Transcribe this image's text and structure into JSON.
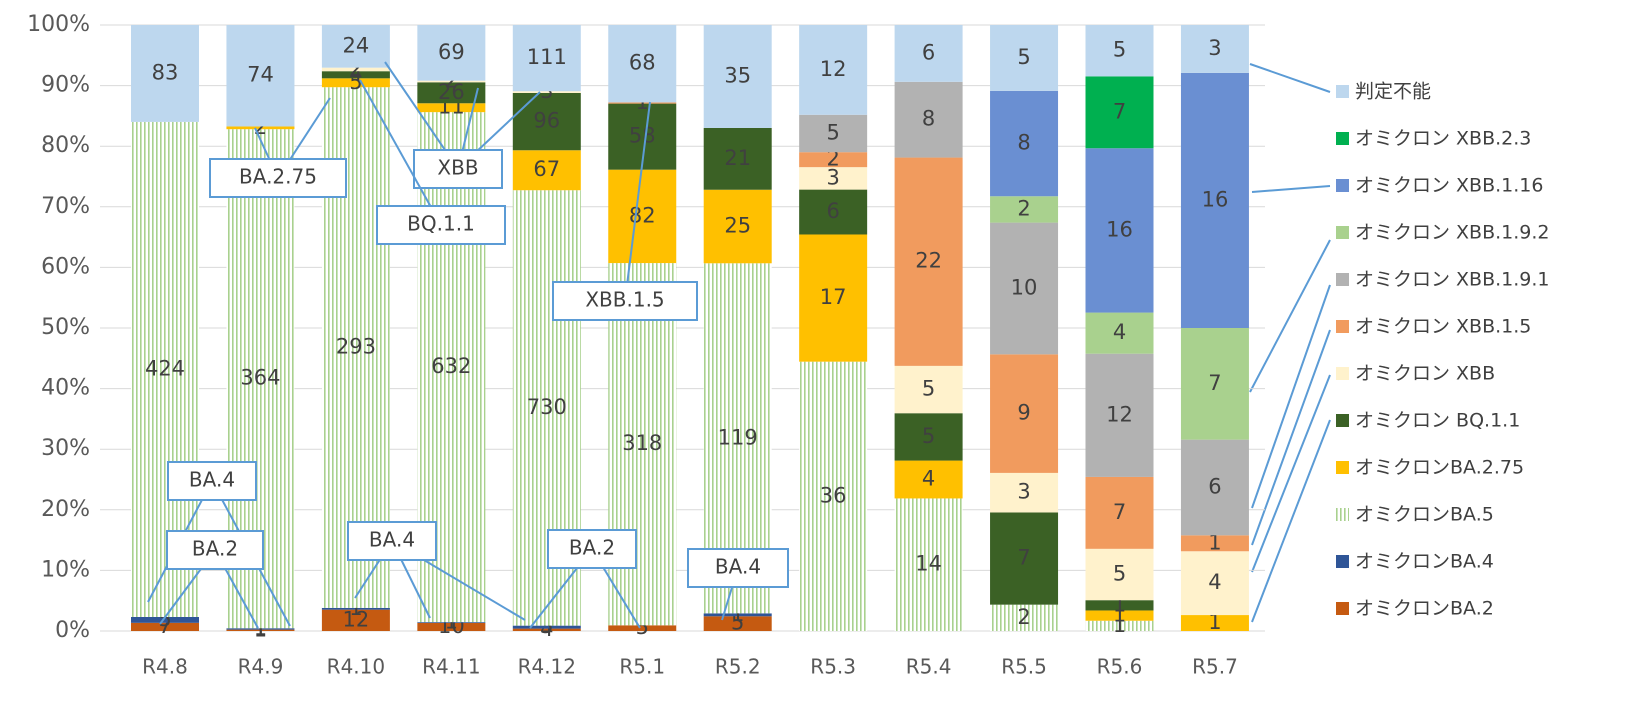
{
  "chart_data": {
    "type": "bar",
    "stacked": "percent",
    "categories": [
      "R4.8",
      "R4.9",
      "R4.10",
      "R4.11",
      "R4.12",
      "R5.1",
      "R5.2",
      "R5.3",
      "R5.4",
      "R5.5",
      "R5.6",
      "R5.7"
    ],
    "series": [
      {
        "name": "オミクロンBA.2",
        "color": "#c55a11",
        "values": [
          7,
          1,
          12,
          10,
          4,
          5,
          5,
          null,
          null,
          null,
          null,
          null
        ]
      },
      {
        "name": "オミクロンBA.4",
        "color": "#2f5597",
        "values": [
          5,
          1,
          1,
          1,
          5,
          null,
          1,
          null,
          null,
          null,
          null,
          null
        ]
      },
      {
        "name": "オミクロンBA.5",
        "color": "#a9d18e",
        "pattern": "vertical-stripes",
        "values": [
          424,
          364,
          293,
          632,
          730,
          318,
          119,
          36,
          14,
          2,
          1,
          null
        ]
      },
      {
        "name": "オミクロンBA.2.75",
        "color": "#ffc000",
        "values": [
          null,
          2,
          5,
          11,
          67,
          82,
          25,
          17,
          4,
          null,
          1,
          1
        ]
      },
      {
        "name": "オミクロン BQ.1.1",
        "color": "#3b6125",
        "values": [
          null,
          null,
          4,
          26,
          96,
          58,
          21,
          6,
          5,
          7,
          1,
          null
        ]
      },
      {
        "name": "オミクロン XBB",
        "color": "#fff2cc",
        "values": [
          null,
          null,
          2,
          2,
          3,
          null,
          null,
          3,
          5,
          3,
          5,
          4
        ]
      },
      {
        "name": "オミクロン XBB.1.5",
        "color": "#f19b5e",
        "values": [
          null,
          null,
          null,
          null,
          null,
          1,
          null,
          2,
          22,
          9,
          7,
          1
        ]
      },
      {
        "name": "オミクロン XBB.1.9.1",
        "color": "#b2b2b2",
        "values": [
          null,
          null,
          null,
          null,
          null,
          null,
          null,
          5,
          8,
          10,
          12,
          6
        ]
      },
      {
        "name": "オミクロン XBB.1.9.2",
        "color": "#a9d18e",
        "values": [
          null,
          null,
          null,
          null,
          null,
          null,
          null,
          null,
          null,
          2,
          4,
          7
        ]
      },
      {
        "name": "オミクロン XBB.1.16",
        "color": "#6a8fd2",
        "values": [
          null,
          null,
          null,
          null,
          null,
          null,
          null,
          null,
          null,
          8,
          16,
          16
        ]
      },
      {
        "name": "オミクロン XBB.2.3",
        "color": "#00b050",
        "values": [
          null,
          null,
          null,
          null,
          null,
          null,
          null,
          null,
          null,
          null,
          7,
          null
        ]
      },
      {
        "name": "判定不能",
        "color": "#bdd7ee",
        "values": [
          83,
          74,
          24,
          69,
          111,
          68,
          35,
          12,
          6,
          5,
          5,
          3
        ]
      }
    ],
    "ylim": [
      0,
      100
    ],
    "yticks": [
      {
        "value": 0,
        "label": "0%"
      },
      {
        "value": 10,
        "label": "10%"
      },
      {
        "value": 20,
        "label": "20%"
      },
      {
        "value": 30,
        "label": "30%"
      },
      {
        "value": 40,
        "label": "40%"
      },
      {
        "value": 50,
        "label": "50%"
      },
      {
        "value": 60,
        "label": "60%"
      },
      {
        "value": 70,
        "label": "70%"
      },
      {
        "value": 80,
        "label": "80%"
      },
      {
        "value": 90,
        "label": "90%"
      },
      {
        "value": 100,
        "label": "100%"
      }
    ],
    "grid": true,
    "legend": "right",
    "annotations": [
      {
        "text": "BA.2.75"
      },
      {
        "text": "XBB"
      },
      {
        "text": "BQ.1.1"
      },
      {
        "text": "XBB.1.5"
      },
      {
        "text": "BA.4"
      },
      {
        "text": "BA.2"
      },
      {
        "text": "BA.4"
      },
      {
        "text": "BA.2"
      },
      {
        "text": "BA.4"
      }
    ]
  }
}
